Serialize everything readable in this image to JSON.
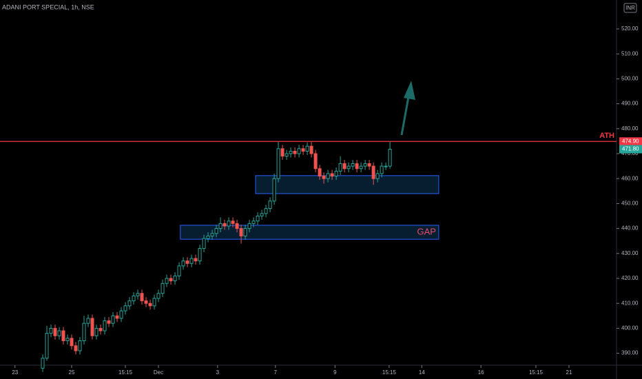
{
  "chart_data": {
    "type": "candlestick",
    "title": "ADANI PORT SPECIAL, 1h, NSE",
    "currency": "INR",
    "up_color": "#26a69a",
    "down_color": "#ef5350",
    "background": "#000000",
    "ohlc": [
      [
        384,
        389.5,
        382.5,
        388
      ],
      [
        388,
        401,
        387,
        398
      ],
      [
        398,
        401.5,
        396.5,
        400
      ],
      [
        400,
        401.5,
        395.5,
        397
      ],
      [
        397,
        400.5,
        395.5,
        399
      ],
      [
        399,
        400.5,
        393.5,
        395
      ],
      [
        395,
        397.5,
        393.5,
        396
      ],
      [
        396,
        397.5,
        391.5,
        393
      ],
      [
        393,
        394.5,
        389.5,
        391
      ],
      [
        391,
        396.5,
        389.5,
        395
      ],
      [
        395,
        405,
        393.5,
        402
      ],
      [
        402,
        405.5,
        400.5,
        404
      ],
      [
        404,
        405.5,
        395.5,
        397
      ],
      [
        397,
        401.5,
        395.5,
        400
      ],
      [
        400,
        401.5,
        397.5,
        399
      ],
      [
        399,
        404.5,
        397.5,
        403
      ],
      [
        403,
        404.5,
        400.5,
        402
      ],
      [
        402,
        406.5,
        400.5,
        405
      ],
      [
        405,
        406.5,
        402.5,
        404
      ],
      [
        404,
        408.5,
        402.5,
        407
      ],
      [
        407,
        410.5,
        405.5,
        409
      ],
      [
        409,
        412.5,
        407.5,
        411
      ],
      [
        411,
        414.5,
        409.5,
        413
      ],
      [
        413,
        415.5,
        411.5,
        414
      ],
      [
        414,
        415.5,
        409.5,
        411
      ],
      [
        411,
        412.5,
        408.5,
        410
      ],
      [
        410,
        411.5,
        407.5,
        409
      ],
      [
        409,
        413.5,
        407.5,
        412
      ],
      [
        412,
        415.5,
        410.5,
        414
      ],
      [
        414,
        419.5,
        412.5,
        418
      ],
      [
        418,
        421.5,
        416.5,
        420
      ],
      [
        420,
        421.5,
        417.5,
        419
      ],
      [
        419,
        422.5,
        417.5,
        421
      ],
      [
        421,
        426.5,
        419.5,
        425
      ],
      [
        425,
        428.5,
        423.5,
        427
      ],
      [
        427,
        428.5,
        424.5,
        426
      ],
      [
        426,
        429.5,
        424.5,
        428
      ],
      [
        428,
        429.5,
        425.5,
        427
      ],
      [
        427,
        433.5,
        425.5,
        432
      ],
      [
        432,
        437.5,
        430.5,
        436
      ],
      [
        436,
        438.5,
        434.5,
        437
      ],
      [
        437,
        439.5,
        435.5,
        438
      ],
      [
        438,
        441.5,
        436.5,
        440
      ],
      [
        440,
        444.5,
        438.5,
        442
      ],
      [
        442,
        443.5,
        439.5,
        441
      ],
      [
        441,
        444.5,
        439.5,
        443
      ],
      [
        443,
        444.5,
        440.5,
        442
      ],
      [
        442,
        443.5,
        438.5,
        440
      ],
      [
        440,
        441.5,
        434,
        437
      ],
      [
        437,
        441.5,
        435.5,
        440
      ],
      [
        440,
        443.5,
        438.5,
        442
      ],
      [
        442,
        444.5,
        440.5,
        443
      ],
      [
        443,
        446.5,
        441.5,
        445
      ],
      [
        445,
        447.5,
        443.5,
        446
      ],
      [
        446,
        449.5,
        444.5,
        448
      ],
      [
        448,
        452.5,
        446.5,
        451
      ],
      [
        451,
        462,
        449.5,
        460
      ],
      [
        460,
        475,
        458.5,
        472
      ],
      [
        472,
        473.5,
        467.5,
        469
      ],
      [
        469,
        471.5,
        467.5,
        470
      ],
      [
        470,
        472.5,
        468.5,
        471
      ],
      [
        471,
        472.5,
        468.5,
        470
      ],
      [
        470,
        473.5,
        468.5,
        472
      ],
      [
        472,
        473.5,
        469.5,
        471
      ],
      [
        471,
        474.5,
        469.5,
        473
      ],
      [
        473,
        475,
        468.5,
        470
      ],
      [
        470,
        471.5,
        462.5,
        464
      ],
      [
        464,
        465.5,
        459.5,
        461
      ],
      [
        461,
        462.5,
        458,
        460
      ],
      [
        460,
        463.5,
        458.5,
        462
      ],
      [
        462,
        463.5,
        459.5,
        461
      ],
      [
        461,
        464.5,
        459.5,
        463
      ],
      [
        463,
        469,
        461.5,
        466
      ],
      [
        466,
        467.5,
        462.5,
        464
      ],
      [
        464,
        466.5,
        462.5,
        465
      ],
      [
        465,
        467.5,
        463.5,
        466
      ],
      [
        466,
        467.5,
        462.5,
        464
      ],
      [
        464,
        466.5,
        462.5,
        465
      ],
      [
        465,
        467.5,
        463.5,
        466
      ],
      [
        466,
        467.5,
        463.5,
        465
      ],
      [
        465,
        466.5,
        457.5,
        460
      ],
      [
        460,
        463.5,
        458.5,
        462
      ],
      [
        462,
        466.5,
        460.5,
        465
      ],
      [
        465,
        466.5,
        463.5,
        465
      ],
      [
        465,
        474.9,
        464,
        471.8
      ]
    ],
    "last_label": "471.80",
    "ylim": [
      385.2,
      531.6
    ],
    "yticks": [
      {
        "value": 390,
        "label": "390.00"
      },
      {
        "value": 400,
        "label": "400.00"
      },
      {
        "value": 410,
        "label": "410.00"
      },
      {
        "value": 420,
        "label": "420.00"
      },
      {
        "value": 430,
        "label": "430.00"
      },
      {
        "value": 440,
        "label": "440.00"
      },
      {
        "value": 450,
        "label": "450.00"
      },
      {
        "value": 460,
        "label": "460.00"
      },
      {
        "value": 470,
        "label": "470.00"
      },
      {
        "value": 480,
        "label": "480.00"
      },
      {
        "value": 490,
        "label": "490.00"
      },
      {
        "value": 500,
        "label": "500.00"
      },
      {
        "value": 510,
        "label": "510.00"
      },
      {
        "value": 520,
        "label": "520.00"
      }
    ],
    "xlim": [
      -10.33,
      138.8
    ],
    "xticks": [
      {
        "value": -6.7,
        "label": "23"
      },
      {
        "value": 7,
        "label": "25"
      },
      {
        "value": 20,
        "label": "15:15"
      },
      {
        "value": 28,
        "label": "Dec"
      },
      {
        "value": 42.3,
        "label": "3"
      },
      {
        "value": 56.3,
        "label": "7"
      },
      {
        "value": 70.7,
        "label": "9"
      },
      {
        "value": 83.8,
        "label": "15:15"
      },
      {
        "value": 91.7,
        "label": "14"
      },
      {
        "value": 106,
        "label": "16"
      },
      {
        "value": 119.3,
        "label": "15:15"
      },
      {
        "value": 127.3,
        "label": "21"
      }
    ],
    "hline": {
      "value": 474.9,
      "label": "ATH",
      "value_label": "474.90",
      "color": "#f23645"
    },
    "zones": [
      {
        "ylim": [
          454,
          461.2
        ],
        "xlim": [
          51.5,
          95.8
        ]
      },
      {
        "ylim": [
          435.7,
          441.3
        ],
        "xlim": [
          33.3,
          95.8
        ],
        "label": "GAP"
      }
    ]
  }
}
